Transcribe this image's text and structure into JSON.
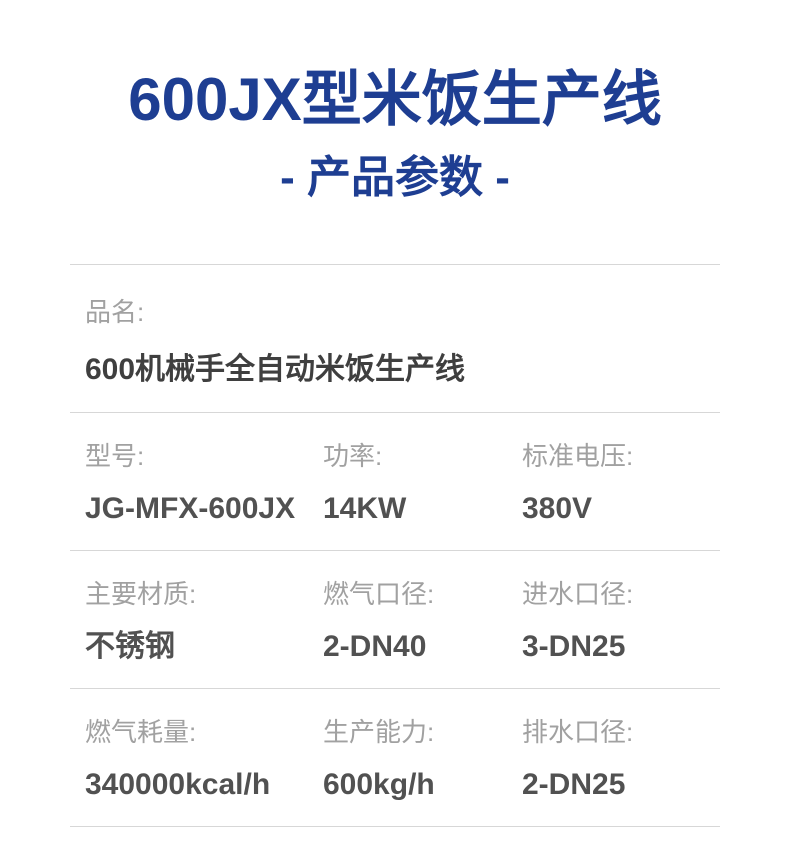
{
  "header": {
    "title": "600JX型米饭生产线",
    "subtitle": "- 产品参数 -",
    "accent_color": "#1e3e92"
  },
  "specs": {
    "product_name": {
      "label": "品名:",
      "value": "600机械手全自动米饭生产线"
    },
    "rows": [
      [
        {
          "label": "型号:",
          "value": "JG-MFX-600JX"
        },
        {
          "label": "功率:",
          "value": "14KW"
        },
        {
          "label": "标准电压:",
          "value": "380V"
        }
      ],
      [
        {
          "label": "主要材质:",
          "value": "不锈钢"
        },
        {
          "label": "燃气口径:",
          "value": "2-DN40"
        },
        {
          "label": "进水口径:",
          "value": "3-DN25"
        }
      ],
      [
        {
          "label": "燃气耗量:",
          "value": "340000kcal/h"
        },
        {
          "label": "生产能力:",
          "value": "600kg/h"
        },
        {
          "label": "排水口径:",
          "value": "2-DN25"
        }
      ]
    ]
  }
}
